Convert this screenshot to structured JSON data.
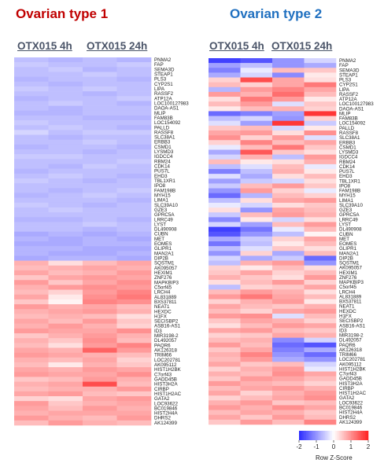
{
  "colors": {
    "low": "#2b2bff",
    "mid": "#ffffff",
    "high": "#ff2020",
    "title1": "#c00000",
    "title2": "#2070c0"
  },
  "chart_data": [
    {
      "type": "heatmap",
      "title": "Ovarian type 1",
      "columns": [
        "OTX015 4h",
        "OTX015 24h"
      ],
      "column_samples": [
        2,
        2
      ],
      "genes": [
        "PNMA2",
        "FAP",
        "SEMA3D",
        "STEAP1",
        "PLS3",
        "CYP2S1",
        "LIPA",
        "RASSF2",
        "ATP12A",
        "LOC100127983",
        "DAOA-AS1",
        "MLIP",
        "FAM83B",
        "LOC154092",
        "PALLD",
        "RASSF8",
        "SLC38A1",
        "ERBB3",
        "CSMD1",
        "LYSMD3",
        "IGDCC4",
        "RBM24",
        "CDK14",
        "PUS7L",
        "EHD3",
        "TBL1XR1",
        "IPO8",
        "FAM198B",
        "MYH15",
        "LIMA1",
        "SLC39A10",
        "GZE3",
        "GPRC5A",
        "LRRC49",
        "LYST",
        "DL490908",
        "CUBN",
        "MET",
        "EOMES",
        "GLIPR1",
        "MAN2A1",
        "DIP2B",
        "SQSTM1",
        "AK095057",
        "HEXIM1",
        "ZNF276",
        "MAPKBIP3",
        "C5orf45",
        "LRCH4",
        "AL831889",
        "BX537811",
        "NEAT1",
        "HEXDC",
        "H1FX",
        "SECISBP2",
        "ASB16-AS1",
        "ID3",
        "MIR3198-2",
        "DL492057",
        "PAQR6",
        "AK126318",
        "TRIM66",
        "LOC202781",
        "AK095112",
        "HIST1H2BK",
        "C7orf43",
        "GADD45B",
        "HIST3H2A",
        "CIRBP",
        "HIST1H2AC",
        "GATA2",
        "LOC93622",
        "BC019846",
        "HIST2H4A",
        "DHRS2",
        "AK124399"
      ],
      "values": [
        [
          -0.6,
          -0.7,
          -0.6,
          -0.7
        ],
        [
          -0.5,
          -0.6,
          -0.6,
          -0.5
        ],
        [
          -0.6,
          -0.5,
          -0.7,
          -0.6
        ],
        [
          -0.6,
          -0.6,
          -0.5,
          -0.6
        ],
        [
          -0.7,
          -0.6,
          -0.6,
          -0.7
        ],
        [
          -0.6,
          -0.7,
          -0.6,
          -0.6
        ],
        [
          -0.5,
          -0.6,
          -0.5,
          -0.6
        ],
        [
          -0.6,
          -0.6,
          -0.7,
          -0.6
        ],
        [
          -0.7,
          -0.6,
          -0.6,
          -0.5
        ],
        [
          -0.6,
          -0.5,
          -0.6,
          -0.7
        ],
        [
          -0.6,
          -0.7,
          -0.6,
          -0.6
        ],
        [
          -0.7,
          -0.7,
          -0.6,
          -0.6
        ],
        [
          -0.6,
          -0.6,
          -0.7,
          -0.7
        ],
        [
          -0.5,
          -0.6,
          -0.6,
          -0.6
        ],
        [
          -0.6,
          -0.5,
          -0.6,
          -0.7
        ],
        [
          -0.4,
          -0.6,
          -0.5,
          -0.5
        ],
        [
          -0.6,
          -0.7,
          -0.6,
          -0.6
        ],
        [
          -0.6,
          -0.6,
          -0.5,
          -0.6
        ],
        [
          -0.7,
          -0.6,
          -0.6,
          -0.7
        ],
        [
          -0.6,
          -0.6,
          -0.7,
          -0.6
        ],
        [
          -0.5,
          -0.5,
          -0.6,
          -0.6
        ],
        [
          -0.6,
          -0.6,
          -0.6,
          -0.5
        ],
        [
          -0.6,
          -0.7,
          -0.5,
          -0.6
        ],
        [
          -0.7,
          -0.6,
          -0.6,
          -0.6
        ],
        [
          -0.6,
          -0.5,
          -0.6,
          -0.7
        ],
        [
          -0.5,
          -0.6,
          -0.7,
          -0.6
        ],
        [
          -0.6,
          -0.6,
          -0.6,
          -0.6
        ],
        [
          -0.6,
          -0.7,
          -0.6,
          -0.5
        ],
        [
          -0.7,
          -0.6,
          -0.5,
          -0.6
        ],
        [
          -0.6,
          -0.6,
          -0.6,
          -0.7
        ],
        [
          -0.5,
          -0.6,
          -0.7,
          -0.6
        ],
        [
          -0.6,
          -0.5,
          -0.6,
          -0.6
        ],
        [
          -0.6,
          -0.6,
          -0.6,
          -0.6
        ],
        [
          -0.7,
          -0.7,
          -0.6,
          -0.7
        ],
        [
          -0.6,
          -0.6,
          -0.5,
          -0.6
        ],
        [
          -0.6,
          -0.6,
          -0.7,
          -0.6
        ],
        [
          -0.8,
          -0.7,
          -0.8,
          -0.7
        ],
        [
          -0.7,
          -0.8,
          -0.7,
          -0.8
        ],
        [
          -0.8,
          -0.8,
          -0.7,
          -0.7
        ],
        [
          -0.7,
          -0.7,
          -0.8,
          -0.8
        ],
        [
          -0.7,
          -0.8,
          -0.8,
          -0.7
        ],
        [
          -0.8,
          -0.7,
          -0.7,
          -0.8
        ],
        [
          0.7,
          0.3,
          0.6,
          0.8
        ],
        [
          0.6,
          0.7,
          0.8,
          0.7
        ],
        [
          0.8,
          0.6,
          0.7,
          0.9
        ],
        [
          0.5,
          0.8,
          0.9,
          0.8
        ],
        [
          0.9,
          0.5,
          0.8,
          1.0
        ],
        [
          0.7,
          0.9,
          1.0,
          0.9
        ],
        [
          0.6,
          0.4,
          0.9,
          1.1
        ],
        [
          0.8,
          0.2,
          1.0,
          1.2
        ],
        [
          0.5,
          0.1,
          1.1,
          1.0
        ],
        [
          0.9,
          0.7,
          0.8,
          0.6
        ],
        [
          0.7,
          0.8,
          0.9,
          0.7
        ],
        [
          0.6,
          0.7,
          0.6,
          0.3
        ],
        [
          0.8,
          0.6,
          0.9,
          0.5
        ],
        [
          0.7,
          0.9,
          0.7,
          0.4
        ],
        [
          0.9,
          0.8,
          0.8,
          1.0
        ],
        [
          0.5,
          0.7,
          0.9,
          0.7
        ],
        [
          0.7,
          0.5,
          1.0,
          0.6
        ],
        [
          0.6,
          0.3,
          0.9,
          1.1
        ],
        [
          0.8,
          0.7,
          1.4,
          0.9
        ],
        [
          0.9,
          0.8,
          0.7,
          0.6
        ],
        [
          0.7,
          0.6,
          0.8,
          0.4
        ],
        [
          0.6,
          0.2,
          0.7,
          0.5
        ],
        [
          0.8,
          0.7,
          0.9,
          0.8
        ],
        [
          0.9,
          0.8,
          0.8,
          1.0
        ],
        [
          0.5,
          0.6,
          0.9,
          0.7
        ],
        [
          0.7,
          0.8,
          1.6,
          0.6
        ],
        [
          0.6,
          0.7,
          0.7,
          0.9
        ],
        [
          0.8,
          0.9,
          0.6,
          0.5
        ],
        [
          0.4,
          0.3,
          0.8,
          0.9
        ],
        [
          0.9,
          0.5,
          0.7,
          0.8
        ],
        [
          0.8,
          0.6,
          0.9,
          0.7
        ],
        [
          0.7,
          0.8,
          0.8,
          0.8
        ],
        [
          0.9,
          0.7,
          0.6,
          0.9
        ],
        [
          0.6,
          0.9,
          0.7,
          0.6
        ]
      ]
    },
    {
      "type": "heatmap",
      "title": "Ovarian type 2",
      "columns": [
        "OTX015 4h",
        "OTX015 24h"
      ],
      "column_samples": [
        2,
        2
      ],
      "genes": [
        "PNMA2",
        "FAP",
        "SEMA3D",
        "STEAP1",
        "PLS3",
        "CYP2S1",
        "LIPA",
        "RASSF2",
        "ATP12A",
        "LOC100127983",
        "DAOA-AS1",
        "MLIP",
        "FAM83B",
        "LOC154092",
        "PALLD",
        "RASSF8",
        "SLC38A1",
        "ERBB3",
        "CSMD1",
        "LYSMD3",
        "IGDCC4",
        "RBM24",
        "CDK14",
        "PUS7L",
        "EHD3",
        "TBL1XR1",
        "IPO8",
        "FAM198B",
        "MYH15",
        "LIMA1",
        "SLC39A10",
        "GZE3",
        "GPRC5A",
        "LRRC49",
        "LYST",
        "DL490908",
        "CUBN",
        "MET",
        "EOMES",
        "GLIPR1",
        "MAN2A1",
        "DIP2B",
        "SQSTM1",
        "AK095057",
        "HEXIM1",
        "ZNF276",
        "MAPKBIP3",
        "C5orf45",
        "LRCH4",
        "AL831889",
        "BX537811",
        "NEAT1",
        "HEXDC",
        "H1FX",
        "SECISBP2",
        "ASB16-AS1",
        "ID3",
        "MIR3198-2",
        "DL492057",
        "PAQR6",
        "AK126318",
        "TRIM66",
        "LOC202781",
        "AK095112",
        "HIST1H2BK",
        "C7orf43",
        "GADD45B",
        "HIST3H2A",
        "CIRBP",
        "HIST1H2AC",
        "GATA2",
        "LOC93622",
        "BC019846",
        "HIST2H4A",
        "DHRS2",
        "AK124399"
      ],
      "values": [
        [
          -1.8,
          -1.6,
          -1.0,
          -0.4
        ],
        [
          -0.9,
          -0.6,
          -1.0,
          -0.8
        ],
        [
          -1.2,
          -0.2,
          0.6,
          0.5
        ],
        [
          -0.8,
          -0.4,
          -1.1,
          0.2
        ],
        [
          0.4,
          1.6,
          0.8,
          0.3
        ],
        [
          0.6,
          0.4,
          0.8,
          1.2
        ],
        [
          -0.7,
          0.9,
          1.1,
          0.8
        ],
        [
          0.9,
          0.7,
          1.3,
          0.6
        ],
        [
          0.3,
          1.2,
          0.9,
          0.2
        ],
        [
          0.6,
          0.9,
          -0.3,
          0.5
        ],
        [
          0.2,
          0.6,
          0.7,
          0.4
        ],
        [
          -1.4,
          -1.2,
          -0.9,
          1.8
        ],
        [
          -0.6,
          -0.4,
          -1.0,
          0.4
        ],
        [
          -0.3,
          -0.9,
          1.8,
          -0.5
        ],
        [
          0.5,
          0.6,
          -0.4,
          0.2
        ],
        [
          0.8,
          0.9,
          0.3,
          1.0
        ],
        [
          1.0,
          0.4,
          0.9,
          -0.3
        ],
        [
          0.4,
          1.1,
          0.6,
          0.8
        ],
        [
          -0.2,
          0.6,
          1.2,
          0.5
        ],
        [
          -0.8,
          1.5,
          0.5,
          0.3
        ],
        [
          -0.4,
          0.7,
          -0.6,
          0.9
        ],
        [
          0.6,
          0.2,
          0.3,
          0.7
        ],
        [
          -0.6,
          -0.3,
          0.6,
          -0.2
        ],
        [
          -1.2,
          -0.6,
          0.7,
          0.2
        ],
        [
          -0.3,
          -0.8,
          0.3,
          0.6
        ],
        [
          -0.9,
          -0.5,
          -0.4,
          0.3
        ],
        [
          -0.5,
          0.6,
          0.9,
          0.5
        ],
        [
          -1.0,
          0.9,
          0.4,
          -0.2
        ],
        [
          -1.4,
          -0.7,
          0.6,
          0.4
        ],
        [
          -0.6,
          0.3,
          0.8,
          0.9
        ],
        [
          -0.2,
          -0.4,
          0.3,
          0.5
        ],
        [
          0.3,
          -1.0,
          0.8,
          0.6
        ],
        [
          -0.5,
          0.6,
          0.9,
          0.7
        ],
        [
          -1.1,
          0.2,
          -0.4,
          0.3
        ],
        [
          -0.4,
          -0.9,
          0.6,
          0.9
        ],
        [
          -1.8,
          -1.3,
          -0.2,
          0.6
        ],
        [
          -1.6,
          -1.0,
          -0.6,
          0.1
        ],
        [
          -0.8,
          -0.5,
          0.4,
          0.8
        ],
        [
          -1.3,
          -0.6,
          0.2,
          0.6
        ],
        [
          -0.6,
          -0.3,
          0.5,
          0.3
        ],
        [
          -1.0,
          0.4,
          -0.8,
          0.6
        ],
        [
          -0.4,
          -0.8,
          -0.5,
          -1.4
        ],
        [
          -0.6,
          0.7,
          0.9,
          -1.0
        ],
        [
          0.4,
          0.2,
          0.6,
          0.3
        ],
        [
          0.5,
          0.8,
          0.4,
          0.6
        ],
        [
          0.7,
          0.5,
          0.3,
          0.9
        ],
        [
          0.3,
          0.6,
          0.9,
          0.4
        ],
        [
          -0.6,
          0.4,
          0.5,
          0.8
        ],
        [
          0.6,
          0.9,
          0.7,
          0.3
        ],
        [
          0.9,
          1.2,
          0.8,
          0.6
        ],
        [
          0.4,
          0.7,
          0.9,
          0.2
        ],
        [
          0.8,
          0.6,
          0.5,
          0.7
        ],
        [
          0.6,
          0.4,
          0.8,
          0.9
        ],
        [
          0.9,
          1.0,
          -0.3,
          0.6
        ],
        [
          0.5,
          0.8,
          0.7,
          0.4
        ],
        [
          0.3,
          0.6,
          0.9,
          0.8
        ],
        [
          0.8,
          0.9,
          0.6,
          0.5
        ],
        [
          0.4,
          0.5,
          0.8,
          0.7
        ],
        [
          0.6,
          0.7,
          -1.1,
          -0.4
        ],
        [
          0.9,
          0.6,
          -1.4,
          -1.6
        ],
        [
          0.5,
          0.8,
          -1.2,
          -0.8
        ],
        [
          0.7,
          1.1,
          -1.0,
          -1.4
        ],
        [
          0.6,
          0.9,
          -0.8,
          -1.0
        ],
        [
          0.8,
          0.5,
          0.6,
          -0.4
        ],
        [
          0.4,
          0.7,
          0.9,
          -0.2
        ],
        [
          0.7,
          0.6,
          1.0,
          0.8
        ],
        [
          0.5,
          0.9,
          0.8,
          0.6
        ],
        [
          0.9,
          0.7,
          0.6,
          0.4
        ],
        [
          0.6,
          0.8,
          0.9,
          0.7
        ],
        [
          0.8,
          0.4,
          0.7,
          0.9
        ],
        [
          0.4,
          0.6,
          0.8,
          1.0
        ],
        [
          0.7,
          0.9,
          0.5,
          0.6
        ],
        [
          0.9,
          0.7,
          1.0,
          0.8
        ],
        [
          0.6,
          0.8,
          0.7,
          0.5
        ],
        [
          0.8,
          0.5,
          0.9,
          0.6
        ],
        [
          0.5,
          0.9,
          0.6,
          1.1
        ]
      ]
    }
  ],
  "legend": {
    "title": "Row Z-Score",
    "ticks": [
      -2,
      -1,
      0,
      1,
      2
    ],
    "range": [
      -2,
      2
    ]
  }
}
